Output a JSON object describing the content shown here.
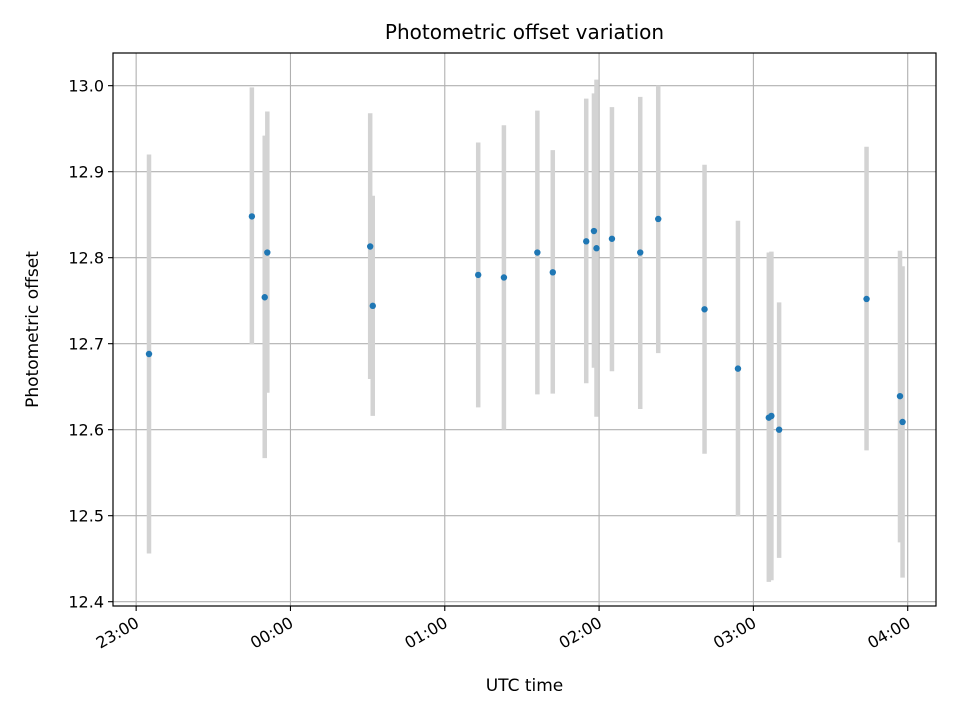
{
  "chart_data": {
    "type": "scatter",
    "title": "Photometric offset variation",
    "xlabel": "UTC time",
    "ylabel": "Photometric offset",
    "xlim": [
      "22:51",
      "04:11"
    ],
    "ylim": [
      12.395,
      13.038
    ],
    "xticks": [
      {
        "time": "23:00",
        "label": "23:00"
      },
      {
        "time": "00:00",
        "label": "00:00"
      },
      {
        "time": "01:00",
        "label": "01:00"
      },
      {
        "time": "02:00",
        "label": "02:00"
      },
      {
        "time": "03:00",
        "label": "03:00"
      },
      {
        "time": "04:00",
        "label": "04:00"
      }
    ],
    "yticks": [
      {
        "value": 12.4,
        "label": "12.4"
      },
      {
        "value": 12.5,
        "label": "12.5"
      },
      {
        "value": 12.6,
        "label": "12.6"
      },
      {
        "value": 12.7,
        "label": "12.7"
      },
      {
        "value": 12.8,
        "label": "12.8"
      },
      {
        "value": 12.9,
        "label": "12.9"
      },
      {
        "value": 13.0,
        "label": "13.0"
      }
    ],
    "grid": true,
    "point_color": "#1f77b4",
    "errorbar_color": "#d3d3d3",
    "points": [
      {
        "time": "23:05",
        "y": 12.688,
        "ylow": 12.456,
        "yhigh": 12.92
      },
      {
        "time": "23:45",
        "y": 12.848,
        "ylow": 12.699,
        "yhigh": 12.998
      },
      {
        "time": "23:50",
        "y": 12.754,
        "ylow": 12.567,
        "yhigh": 12.942
      },
      {
        "time": "23:51",
        "y": 12.806,
        "ylow": 12.643,
        "yhigh": 12.97
      },
      {
        "time": "00:31",
        "y": 12.813,
        "ylow": 12.659,
        "yhigh": 12.968
      },
      {
        "time": "00:32",
        "y": 12.744,
        "ylow": 12.616,
        "yhigh": 12.872
      },
      {
        "time": "01:13",
        "y": 12.78,
        "ylow": 12.626,
        "yhigh": 12.934
      },
      {
        "time": "01:23",
        "y": 12.777,
        "ylow": 12.6,
        "yhigh": 12.954
      },
      {
        "time": "01:36",
        "y": 12.806,
        "ylow": 12.641,
        "yhigh": 12.971
      },
      {
        "time": "01:42",
        "y": 12.783,
        "ylow": 12.642,
        "yhigh": 12.925
      },
      {
        "time": "01:55",
        "y": 12.819,
        "ylow": 12.654,
        "yhigh": 12.985
      },
      {
        "time": "01:58",
        "y": 12.831,
        "ylow": 12.672,
        "yhigh": 12.991
      },
      {
        "time": "01:59",
        "y": 12.811,
        "ylow": 12.615,
        "yhigh": 13.007
      },
      {
        "time": "02:05",
        "y": 12.822,
        "ylow": 12.668,
        "yhigh": 12.975
      },
      {
        "time": "02:16",
        "y": 12.806,
        "ylow": 12.624,
        "yhigh": 12.987
      },
      {
        "time": "02:23",
        "y": 12.845,
        "ylow": 12.689,
        "yhigh": 13.0
      },
      {
        "time": "02:41",
        "y": 12.74,
        "ylow": 12.572,
        "yhigh": 12.908
      },
      {
        "time": "02:54",
        "y": 12.671,
        "ylow": 12.499,
        "yhigh": 12.843
      },
      {
        "time": "03:06",
        "y": 12.614,
        "ylow": 12.423,
        "yhigh": 12.806
      },
      {
        "time": "03:07",
        "y": 12.616,
        "ylow": 12.425,
        "yhigh": 12.807
      },
      {
        "time": "03:10",
        "y": 12.6,
        "ylow": 12.451,
        "yhigh": 12.748
      },
      {
        "time": "03:44",
        "y": 12.752,
        "ylow": 12.576,
        "yhigh": 12.929
      },
      {
        "time": "03:57",
        "y": 12.639,
        "ylow": 12.469,
        "yhigh": 12.808
      },
      {
        "time": "03:58",
        "y": 12.609,
        "ylow": 12.428,
        "yhigh": 12.79
      }
    ]
  }
}
